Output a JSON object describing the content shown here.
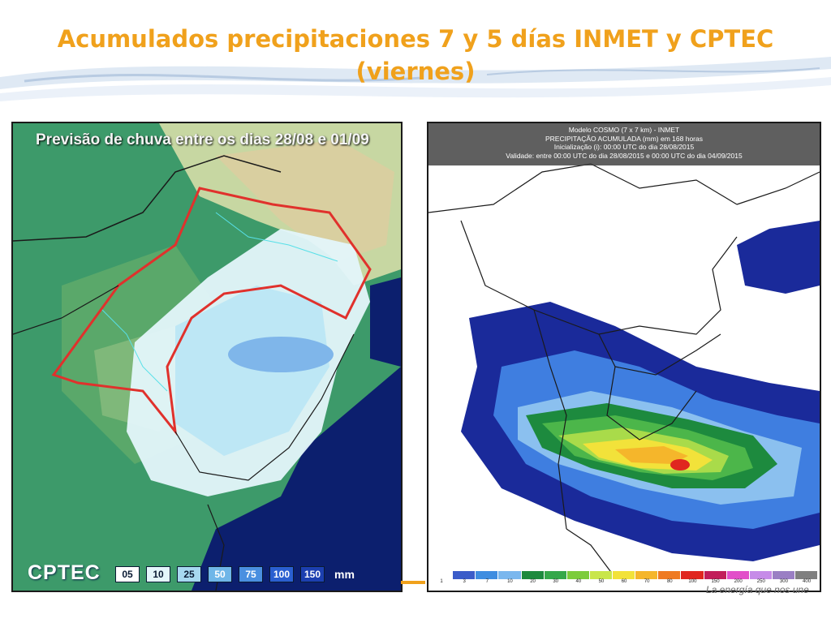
{
  "slide": {
    "title_line1": "Acumulados precipitaciones 7 y 5 días INMET y CPTEC",
    "title_line2": "(viernes)",
    "tagline": "La energía que nos une",
    "title_color": "#f0a11c"
  },
  "left_map": {
    "title": "Previsão de chuva entre os dias 28/08 e 01/09",
    "logo": "CPTEC",
    "legend": [
      {
        "label": "05",
        "color": "#ffffff"
      },
      {
        "label": "10",
        "color": "#e4f6fb"
      },
      {
        "label": "25",
        "color": "#a7d8f0"
      },
      {
        "label": "50",
        "color": "#6fb6e8"
      },
      {
        "label": "75",
        "color": "#4a8fe0"
      },
      {
        "label": "100",
        "color": "#2a5fd0"
      },
      {
        "label": "150",
        "color": "#1c3fb0"
      }
    ],
    "legend_unit": "mm"
  },
  "right_map": {
    "header_line1": "Modelo COSMO (7 x 7 km) - INMET",
    "header_line2": "PRECIPITAÇÃO ACUMULADA (mm) em 168 horas",
    "header_line3": "Inicialização (i): 00:00 UTC do dia 28/08/2015",
    "header_line4": "Validade: entre 00:00 UTC do dia 28/08/2015 e 00:00 UTC do dia 04/09/2015",
    "legend": [
      {
        "label": "1",
        "color": "#ffffff"
      },
      {
        "label": "3",
        "color": "#3b5cc9"
      },
      {
        "label": "7",
        "color": "#3f8de0"
      },
      {
        "label": "10",
        "color": "#7ab7ee"
      },
      {
        "label": "20",
        "color": "#1d8a3e"
      },
      {
        "label": "30",
        "color": "#35a84a"
      },
      {
        "label": "40",
        "color": "#7ccc3c"
      },
      {
        "label": "50",
        "color": "#c9e64a"
      },
      {
        "label": "60",
        "color": "#f2e23a"
      },
      {
        "label": "70",
        "color": "#f5b62b"
      },
      {
        "label": "80",
        "color": "#ef7a22"
      },
      {
        "label": "100",
        "color": "#e0261f"
      },
      {
        "label": "150",
        "color": "#c21d5a"
      },
      {
        "label": "200",
        "color": "#e24fc9"
      },
      {
        "label": "250",
        "color": "#c68be8"
      },
      {
        "label": "300",
        "color": "#9a7fc4"
      },
      {
        "label": "400",
        "color": "#808080"
      }
    ]
  }
}
